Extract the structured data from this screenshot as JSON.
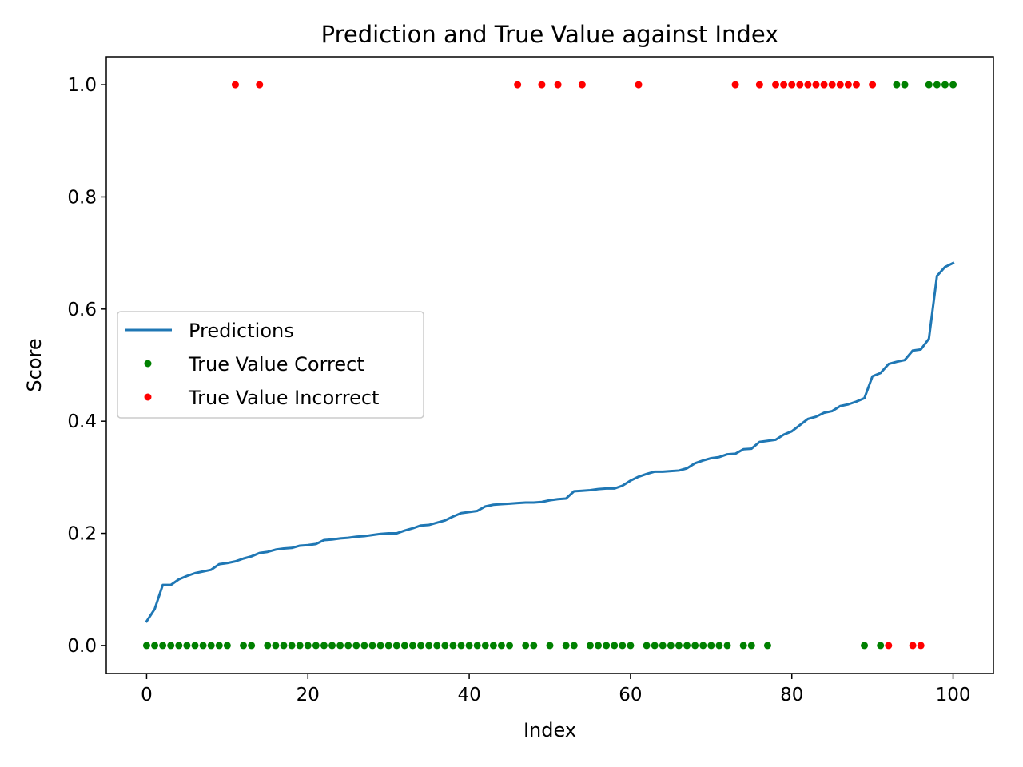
{
  "chart_data": {
    "type": "line",
    "title": "Prediction and True Value against Index",
    "xlabel": "Index",
    "ylabel": "Score",
    "xlim": [
      -5,
      105
    ],
    "ylim": [
      -0.05,
      1.05
    ],
    "xticks": [
      0,
      20,
      40,
      60,
      80,
      100
    ],
    "yticks": [
      0.0,
      0.2,
      0.4,
      0.6,
      0.8,
      1.0
    ],
    "xtick_labels": [
      "0",
      "20",
      "40",
      "60",
      "80",
      "100"
    ],
    "ytick_labels": [
      "0.0",
      "0.2",
      "0.4",
      "0.6",
      "0.8",
      "1.0"
    ],
    "grid": false,
    "legend_position": "center-left",
    "series": [
      {
        "name": "Predictions",
        "kind": "line",
        "color": "#1f77b4",
        "x": [
          0,
          1,
          2,
          3,
          4,
          5,
          6,
          7,
          8,
          9,
          10,
          11,
          12,
          13,
          14,
          15,
          16,
          17,
          18,
          19,
          20,
          21,
          22,
          23,
          24,
          25,
          26,
          27,
          28,
          29,
          30,
          31,
          32,
          33,
          34,
          35,
          36,
          37,
          38,
          39,
          40,
          41,
          42,
          43,
          44,
          45,
          46,
          47,
          48,
          49,
          50,
          51,
          52,
          53,
          54,
          55,
          56,
          57,
          58,
          59,
          60,
          61,
          62,
          63,
          64,
          65,
          66,
          67,
          68,
          69,
          70,
          71,
          72,
          73,
          74,
          75,
          76,
          77,
          78,
          79,
          80,
          81,
          82,
          83,
          84,
          85,
          86,
          87,
          88,
          89,
          90,
          91,
          92,
          93,
          94,
          95,
          96,
          97,
          98,
          99,
          100
        ],
        "y": [
          0.043,
          0.065,
          0.108,
          0.108,
          0.118,
          0.124,
          0.129,
          0.132,
          0.135,
          0.145,
          0.147,
          0.15,
          0.155,
          0.159,
          0.165,
          0.167,
          0.171,
          0.173,
          0.174,
          0.178,
          0.179,
          0.181,
          0.188,
          0.189,
          0.191,
          0.192,
          0.194,
          0.195,
          0.197,
          0.199,
          0.2,
          0.2,
          0.205,
          0.209,
          0.214,
          0.215,
          0.219,
          0.223,
          0.23,
          0.236,
          0.238,
          0.24,
          0.248,
          0.251,
          0.252,
          0.253,
          0.254,
          0.255,
          0.255,
          0.256,
          0.259,
          0.261,
          0.262,
          0.275,
          0.276,
          0.277,
          0.279,
          0.28,
          0.28,
          0.285,
          0.294,
          0.301,
          0.306,
          0.31,
          0.31,
          0.311,
          0.312,
          0.316,
          0.325,
          0.33,
          0.334,
          0.336,
          0.341,
          0.342,
          0.35,
          0.351,
          0.363,
          0.365,
          0.367,
          0.376,
          0.382,
          0.393,
          0.404,
          0.408,
          0.415,
          0.418,
          0.427,
          0.43,
          0.435,
          0.441,
          0.48,
          0.486,
          0.502,
          0.506,
          0.509,
          0.526,
          0.528,
          0.547,
          0.659,
          0.675,
          0.682
        ]
      },
      {
        "name": "True Value Correct",
        "kind": "points",
        "color": "#008000",
        "x": [
          0,
          1,
          2,
          3,
          4,
          5,
          6,
          7,
          8,
          9,
          10,
          12,
          13,
          15,
          16,
          17,
          18,
          19,
          20,
          21,
          22,
          23,
          24,
          25,
          26,
          27,
          28,
          29,
          30,
          31,
          32,
          33,
          34,
          35,
          36,
          37,
          38,
          39,
          40,
          41,
          42,
          43,
          44,
          45,
          47,
          48,
          50,
          52,
          53,
          55,
          56,
          57,
          58,
          59,
          60,
          62,
          63,
          64,
          65,
          66,
          67,
          68,
          69,
          70,
          71,
          72,
          74,
          75,
          77,
          89,
          91,
          93,
          94,
          97,
          98,
          99,
          100
        ],
        "y": [
          0,
          0,
          0,
          0,
          0,
          0,
          0,
          0,
          0,
          0,
          0,
          0,
          0,
          0,
          0,
          0,
          0,
          0,
          0,
          0,
          0,
          0,
          0,
          0,
          0,
          0,
          0,
          0,
          0,
          0,
          0,
          0,
          0,
          0,
          0,
          0,
          0,
          0,
          0,
          0,
          0,
          0,
          0,
          0,
          0,
          0,
          0,
          0,
          0,
          0,
          0,
          0,
          0,
          0,
          0,
          0,
          0,
          0,
          0,
          0,
          0,
          0,
          0,
          0,
          0,
          0,
          0,
          0,
          0,
          0,
          0,
          1,
          1,
          1,
          1,
          1,
          1
        ]
      },
      {
        "name": "True Value Incorrect",
        "kind": "points",
        "color": "#ff0000",
        "x": [
          11,
          14,
          46,
          49,
          51,
          54,
          61,
          73,
          76,
          78,
          79,
          80,
          81,
          82,
          83,
          84,
          85,
          86,
          87,
          88,
          90,
          92,
          95,
          96
        ],
        "y": [
          1,
          1,
          1,
          1,
          1,
          1,
          1,
          1,
          1,
          1,
          1,
          1,
          1,
          1,
          1,
          1,
          1,
          1,
          1,
          1,
          1,
          0,
          0,
          0
        ]
      }
    ]
  }
}
